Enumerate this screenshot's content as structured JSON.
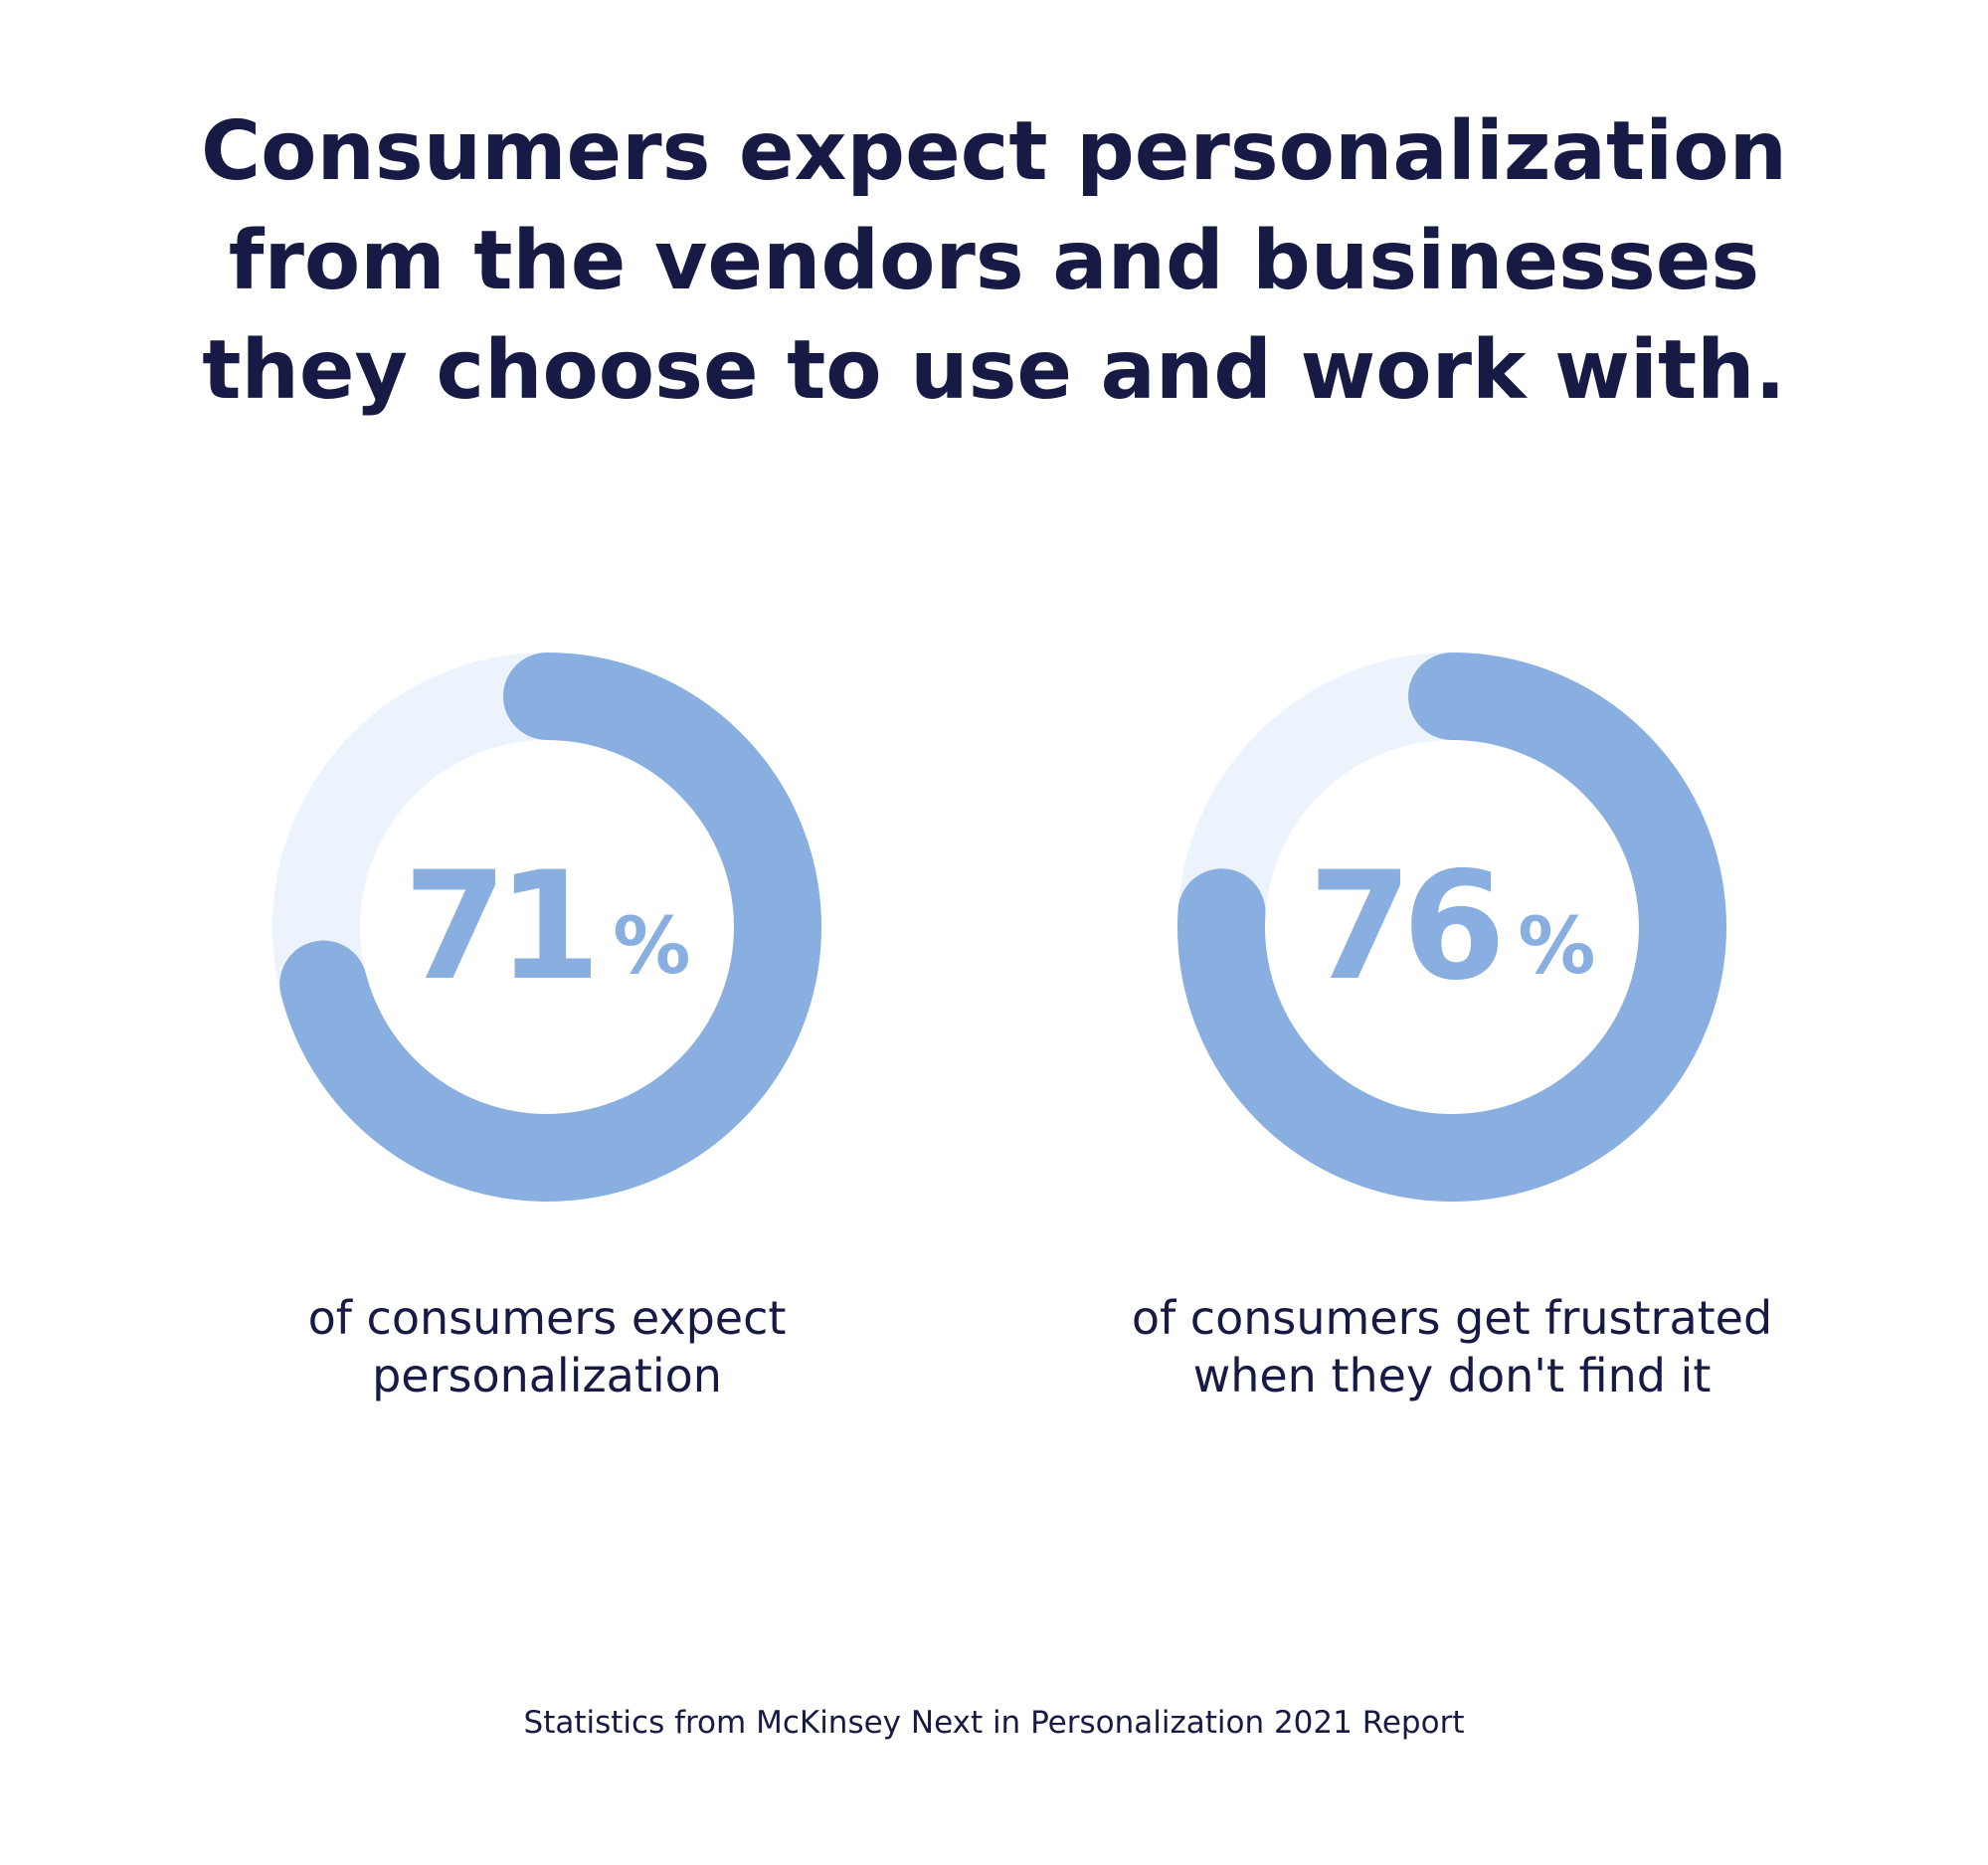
{
  "headline": {
    "lines": [
      "Consumers expect personalization",
      "from the vendors and businesses",
      "they choose to use and work with."
    ]
  },
  "chart_data": [
    {
      "type": "donut",
      "value": 71,
      "max": 100,
      "number_label": "71",
      "unit_label": "%",
      "caption_lines": [
        "of consumers expect",
        "personalization"
      ],
      "colors": {
        "filled": "#89aee0",
        "track": "#ecf3fc"
      }
    },
    {
      "type": "donut",
      "value": 76,
      "max": 100,
      "number_label": "76",
      "unit_label": "%",
      "caption_lines": [
        "of consumers get frustrated",
        "when they don't find it"
      ],
      "colors": {
        "filled": "#89aee0",
        "track": "#ecf3fc"
      }
    }
  ],
  "source": "Statistics from McKinsey Next in Personalization 2021 Report",
  "colors": {
    "text": "#161a44",
    "accent": "#89aee0",
    "track": "#ecf3fc",
    "background": "#ffffff"
  }
}
